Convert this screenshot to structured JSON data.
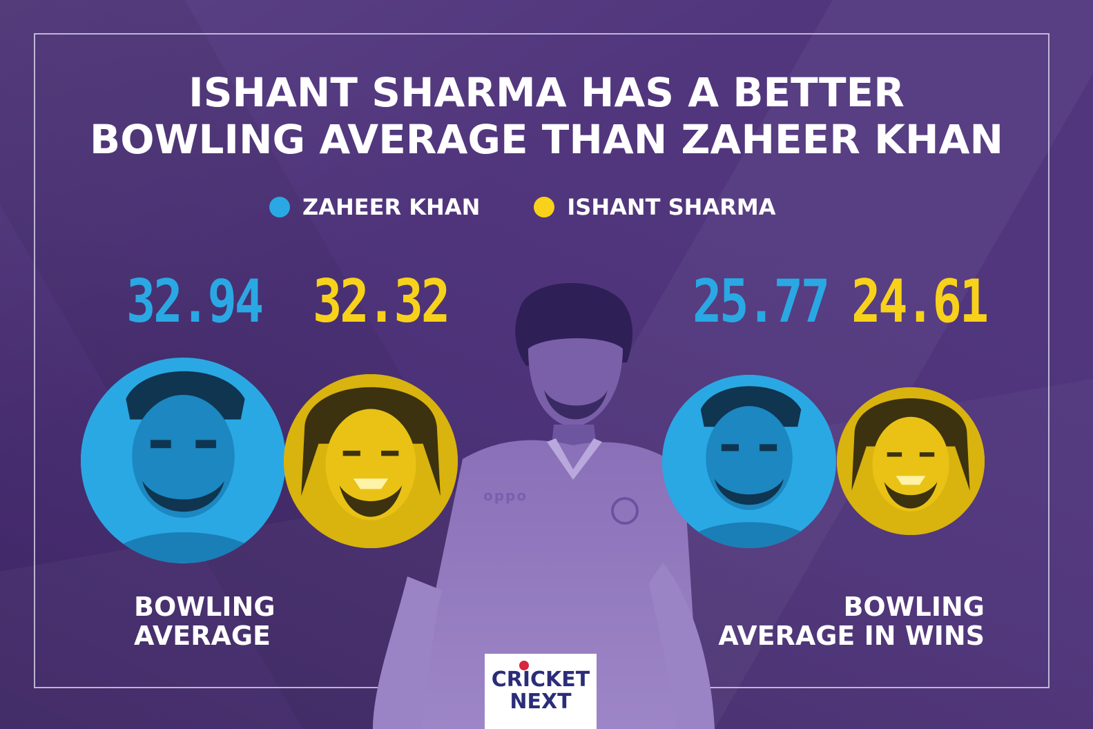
{
  "title": {
    "line1": "ISHANT SHARMA  HAS A BETTER",
    "line2": "BOWLING AVERAGE THAN ZAHEER KHAN"
  },
  "legend": [
    {
      "label": "ZAHEER KHAN",
      "color": "#2aa8e4"
    },
    {
      "label": "ISHANT SHARMA",
      "color": "#f8d21a"
    }
  ],
  "stats": {
    "bowling_average": {
      "zaheer": "32.94",
      "ishant": "32.32",
      "caption_line1": "BOWLING",
      "caption_line2": "AVERAGE"
    },
    "average_in_wins": {
      "zaheer": "25.77",
      "ishant": "24.61",
      "caption_line1": "BOWLING",
      "caption_line2": "AVERAGE IN WINS"
    }
  },
  "logo": {
    "line1": "CRICKET",
    "line2": "NEXT"
  },
  "colors": {
    "background": "#4a2e78",
    "zaheer": "#2aa8e4",
    "ishant": "#f8d21a",
    "text": "#ffffff"
  },
  "icons": {
    "zaheer_portrait": "zaheer-khan-portrait",
    "ishant_portrait": "ishant-sharma-portrait",
    "hero": "ishant-sharma-hero-photo"
  }
}
